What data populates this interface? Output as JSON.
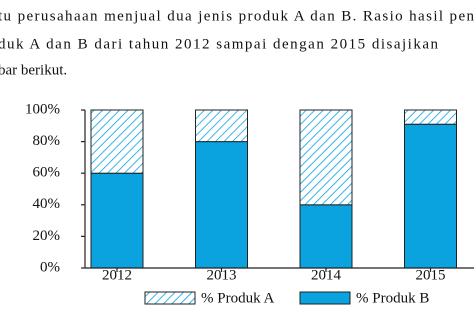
{
  "text": [
    "tu perusahaan menjual dua jenis produk A dan B. Rasio hasil pen",
    "duk A dan B dari tahun 2012 sampai dengan 2015 disajikan",
    "bar berikut."
  ],
  "chart_data": {
    "type": "stacked-bar",
    "categories": [
      "2012",
      "2013",
      "2014",
      "2015"
    ],
    "series": [
      {
        "name": "% Produk B",
        "color": "#0aa3e0",
        "values": [
          60,
          80,
          40,
          91
        ]
      },
      {
        "name": "% Produk A",
        "color": "#0aa3e0",
        "pattern": "hatch",
        "values": [
          40,
          20,
          60,
          9
        ]
      }
    ],
    "ylim": [
      0,
      100
    ],
    "yticks": [
      {
        "value": 0,
        "label": "0%"
      },
      {
        "value": 20,
        "label": "20%"
      },
      {
        "value": 40,
        "label": "40%"
      },
      {
        "value": 60,
        "label": "60%"
      },
      {
        "value": 80,
        "label": "80%"
      },
      {
        "value": 100,
        "label": "100%"
      }
    ],
    "legend": "bottom"
  }
}
